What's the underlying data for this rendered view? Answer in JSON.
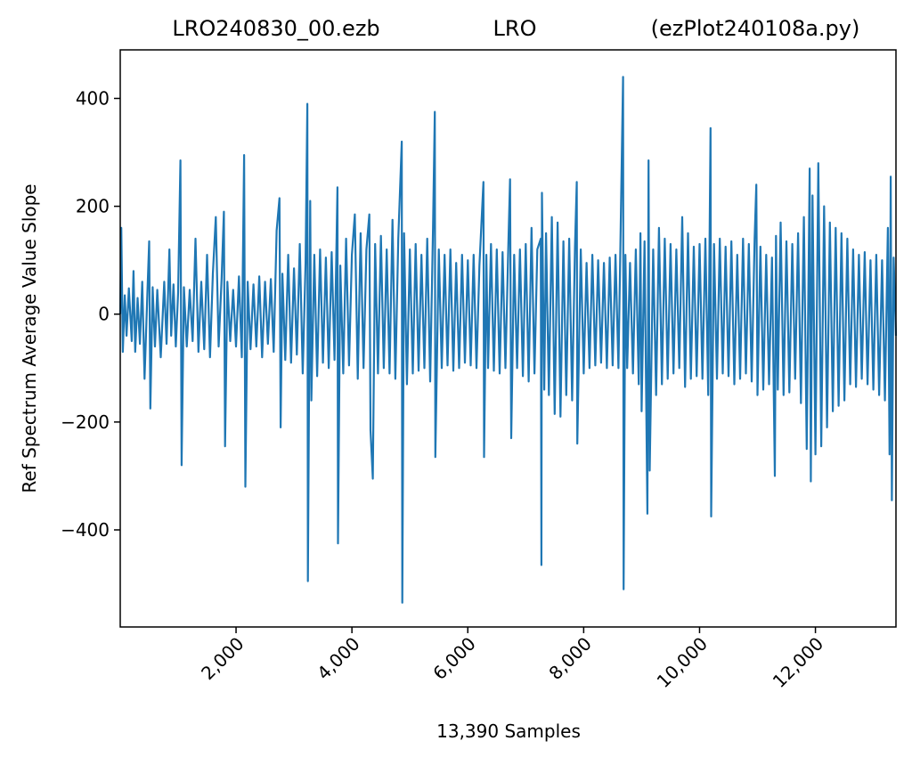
{
  "chart_data": {
    "type": "line",
    "title_left": "LRO240830_00.ezb",
    "title_center": "LRO",
    "title_right": "(ezPlot240108a.py)",
    "xlabel": "13,390 Samples",
    "ylabel": "Ref Spectrum Average Value Slope",
    "xlim": [
      1,
      13390
    ],
    "ylim": [
      -580,
      490
    ],
    "x_ticks": [
      {
        "value": 2000,
        "label": "2,000"
      },
      {
        "value": 4000,
        "label": "4,000"
      },
      {
        "value": 6000,
        "label": "6,000"
      },
      {
        "value": 8000,
        "label": "8,000"
      },
      {
        "value": 10000,
        "label": "10,000"
      },
      {
        "value": 12000,
        "label": "12,000"
      }
    ],
    "y_ticks": [
      {
        "value": 400,
        "label": "400"
      },
      {
        "value": 200,
        "label": "200"
      },
      {
        "value": 0,
        "label": "0"
      },
      {
        "value": -200,
        "label": "−200"
      },
      {
        "value": -400,
        "label": "−400"
      }
    ],
    "grid": false,
    "line_color": "#1f77b4",
    "series": [
      {
        "points": [
          [
            1,
            0
          ],
          [
            20,
            160
          ],
          [
            45,
            -70
          ],
          [
            80,
            35
          ],
          [
            110,
            -40
          ],
          [
            150,
            48
          ],
          [
            200,
            -50
          ],
          [
            230,
            80
          ],
          [
            260,
            -70
          ],
          [
            300,
            30
          ],
          [
            340,
            -55
          ],
          [
            380,
            60
          ],
          [
            420,
            -120
          ],
          [
            470,
            40
          ],
          [
            500,
            135
          ],
          [
            520,
            -175
          ],
          [
            560,
            50
          ],
          [
            600,
            -60
          ],
          [
            640,
            45
          ],
          [
            700,
            -80
          ],
          [
            760,
            60
          ],
          [
            800,
            -55
          ],
          [
            850,
            120
          ],
          [
            880,
            -40
          ],
          [
            920,
            55
          ],
          [
            960,
            -60
          ],
          [
            1000,
            40
          ],
          [
            1040,
            285
          ],
          [
            1060,
            -280
          ],
          [
            1100,
            50
          ],
          [
            1150,
            -60
          ],
          [
            1200,
            45
          ],
          [
            1250,
            -50
          ],
          [
            1300,
            140
          ],
          [
            1350,
            -70
          ],
          [
            1400,
            60
          ],
          [
            1450,
            -65
          ],
          [
            1500,
            110
          ],
          [
            1550,
            -80
          ],
          [
            1600,
            75
          ],
          [
            1650,
            180
          ],
          [
            1700,
            -60
          ],
          [
            1750,
            65
          ],
          [
            1790,
            190
          ],
          [
            1810,
            -245
          ],
          [
            1850,
            60
          ],
          [
            1900,
            -50
          ],
          [
            1950,
            45
          ],
          [
            2000,
            -60
          ],
          [
            2050,
            70
          ],
          [
            2100,
            -80
          ],
          [
            2140,
            295
          ],
          [
            2160,
            -320
          ],
          [
            2200,
            60
          ],
          [
            2250,
            -65
          ],
          [
            2300,
            55
          ],
          [
            2350,
            -60
          ],
          [
            2400,
            70
          ],
          [
            2450,
            -80
          ],
          [
            2500,
            60
          ],
          [
            2550,
            -55
          ],
          [
            2600,
            65
          ],
          [
            2650,
            -70
          ],
          [
            2700,
            155
          ],
          [
            2750,
            215
          ],
          [
            2770,
            -210
          ],
          [
            2800,
            75
          ],
          [
            2850,
            -85
          ],
          [
            2900,
            110
          ],
          [
            2950,
            -90
          ],
          [
            3000,
            85
          ],
          [
            3050,
            -75
          ],
          [
            3100,
            130
          ],
          [
            3150,
            -110
          ],
          [
            3200,
            95
          ],
          [
            3230,
            390
          ],
          [
            3240,
            -495
          ],
          [
            3280,
            210
          ],
          [
            3300,
            -160
          ],
          [
            3350,
            110
          ],
          [
            3400,
            -115
          ],
          [
            3450,
            120
          ],
          [
            3500,
            -90
          ],
          [
            3550,
            105
          ],
          [
            3600,
            -100
          ],
          [
            3650,
            115
          ],
          [
            3700,
            -85
          ],
          [
            3750,
            235
          ],
          [
            3760,
            -425
          ],
          [
            3800,
            90
          ],
          [
            3850,
            -110
          ],
          [
            3900,
            140
          ],
          [
            3950,
            -95
          ],
          [
            4000,
            110
          ],
          [
            4050,
            185
          ],
          [
            4100,
            -120
          ],
          [
            4150,
            150
          ],
          [
            4200,
            -100
          ],
          [
            4250,
            120
          ],
          [
            4300,
            185
          ],
          [
            4320,
            -215
          ],
          [
            4360,
            -305
          ],
          [
            4400,
            130
          ],
          [
            4450,
            -110
          ],
          [
            4500,
            145
          ],
          [
            4550,
            -100
          ],
          [
            4600,
            120
          ],
          [
            4650,
            -110
          ],
          [
            4700,
            175
          ],
          [
            4750,
            -120
          ],
          [
            4800,
            140
          ],
          [
            4860,
            320
          ],
          [
            4870,
            -535
          ],
          [
            4900,
            150
          ],
          [
            4950,
            -130
          ],
          [
            5000,
            120
          ],
          [
            5050,
            -110
          ],
          [
            5100,
            130
          ],
          [
            5150,
            -105
          ],
          [
            5200,
            110
          ],
          [
            5250,
            -100
          ],
          [
            5300,
            140
          ],
          [
            5350,
            -125
          ],
          [
            5400,
            160
          ],
          [
            5430,
            375
          ],
          [
            5440,
            -265
          ],
          [
            5500,
            120
          ],
          [
            5550,
            -100
          ],
          [
            5600,
            110
          ],
          [
            5650,
            -95
          ],
          [
            5700,
            120
          ],
          [
            5750,
            -105
          ],
          [
            5800,
            95
          ],
          [
            5850,
            -100
          ],
          [
            5900,
            110
          ],
          [
            5950,
            -90
          ],
          [
            6000,
            100
          ],
          [
            6050,
            -95
          ],
          [
            6100,
            110
          ],
          [
            6150,
            -100
          ],
          [
            6200,
            90
          ],
          [
            6270,
            245
          ],
          [
            6280,
            -265
          ],
          [
            6320,
            110
          ],
          [
            6350,
            -100
          ],
          [
            6400,
            130
          ],
          [
            6450,
            -105
          ],
          [
            6500,
            120
          ],
          [
            6550,
            -110
          ],
          [
            6600,
            115
          ],
          [
            6650,
            -100
          ],
          [
            6700,
            130
          ],
          [
            6730,
            250
          ],
          [
            6750,
            -230
          ],
          [
            6800,
            110
          ],
          [
            6850,
            -100
          ],
          [
            6900,
            120
          ],
          [
            6950,
            -115
          ],
          [
            7000,
            130
          ],
          [
            7050,
            -125
          ],
          [
            7100,
            160
          ],
          [
            7150,
            -110
          ],
          [
            7200,
            120
          ],
          [
            7260,
            140
          ],
          [
            7270,
            -465
          ],
          [
            7280,
            225
          ],
          [
            7320,
            -140
          ],
          [
            7350,
            150
          ],
          [
            7400,
            -150
          ],
          [
            7450,
            180
          ],
          [
            7500,
            -185
          ],
          [
            7550,
            170
          ],
          [
            7600,
            -190
          ],
          [
            7650,
            135
          ],
          [
            7700,
            -150
          ],
          [
            7750,
            140
          ],
          [
            7800,
            -160
          ],
          [
            7850,
            125
          ],
          [
            7880,
            245
          ],
          [
            7890,
            -240
          ],
          [
            7950,
            120
          ],
          [
            8000,
            -110
          ],
          [
            8050,
            95
          ],
          [
            8100,
            -100
          ],
          [
            8150,
            110
          ],
          [
            8200,
            -95
          ],
          [
            8250,
            100
          ],
          [
            8300,
            -90
          ],
          [
            8350,
            95
          ],
          [
            8400,
            -100
          ],
          [
            8450,
            105
          ],
          [
            8500,
            -95
          ],
          [
            8550,
            110
          ],
          [
            8600,
            -100
          ],
          [
            8680,
            440
          ],
          [
            8690,
            -510
          ],
          [
            8720,
            110
          ],
          [
            8750,
            -100
          ],
          [
            8800,
            95
          ],
          [
            8850,
            -110
          ],
          [
            8900,
            120
          ],
          [
            8950,
            -130
          ],
          [
            8980,
            150
          ],
          [
            9000,
            -180
          ],
          [
            9050,
            135
          ],
          [
            9100,
            -370
          ],
          [
            9120,
            285
          ],
          [
            9140,
            -290
          ],
          [
            9200,
            120
          ],
          [
            9250,
            -150
          ],
          [
            9300,
            160
          ],
          [
            9350,
            -130
          ],
          [
            9400,
            140
          ],
          [
            9450,
            -120
          ],
          [
            9500,
            130
          ],
          [
            9550,
            -110
          ],
          [
            9600,
            120
          ],
          [
            9650,
            -100
          ],
          [
            9700,
            180
          ],
          [
            9750,
            -135
          ],
          [
            9800,
            150
          ],
          [
            9850,
            -120
          ],
          [
            9900,
            125
          ],
          [
            9950,
            -115
          ],
          [
            10000,
            130
          ],
          [
            10050,
            -120
          ],
          [
            10100,
            140
          ],
          [
            10150,
            -150
          ],
          [
            10190,
            345
          ],
          [
            10200,
            -375
          ],
          [
            10250,
            130
          ],
          [
            10300,
            -120
          ],
          [
            10350,
            140
          ],
          [
            10400,
            -110
          ],
          [
            10450,
            125
          ],
          [
            10500,
            -115
          ],
          [
            10550,
            135
          ],
          [
            10600,
            -130
          ],
          [
            10650,
            110
          ],
          [
            10700,
            -120
          ],
          [
            10750,
            140
          ],
          [
            10800,
            -110
          ],
          [
            10850,
            130
          ],
          [
            10900,
            -125
          ],
          [
            10950,
            140
          ],
          [
            10980,
            240
          ],
          [
            11000,
            -150
          ],
          [
            11050,
            125
          ],
          [
            11100,
            -140
          ],
          [
            11150,
            110
          ],
          [
            11200,
            -130
          ],
          [
            11250,
            105
          ],
          [
            11300,
            -300
          ],
          [
            11320,
            145
          ],
          [
            11350,
            -140
          ],
          [
            11400,
            170
          ],
          [
            11450,
            -150
          ],
          [
            11500,
            135
          ],
          [
            11550,
            -145
          ],
          [
            11600,
            130
          ],
          [
            11650,
            -120
          ],
          [
            11700,
            150
          ],
          [
            11750,
            -165
          ],
          [
            11800,
            180
          ],
          [
            11850,
            -250
          ],
          [
            11900,
            270
          ],
          [
            11920,
            -310
          ],
          [
            11950,
            220
          ],
          [
            12000,
            -260
          ],
          [
            12050,
            280
          ],
          [
            12100,
            -245
          ],
          [
            12150,
            200
          ],
          [
            12200,
            -210
          ],
          [
            12250,
            170
          ],
          [
            12300,
            -180
          ],
          [
            12350,
            160
          ],
          [
            12400,
            -170
          ],
          [
            12450,
            150
          ],
          [
            12500,
            -160
          ],
          [
            12550,
            140
          ],
          [
            12600,
            -130
          ],
          [
            12650,
            120
          ],
          [
            12700,
            -135
          ],
          [
            12750,
            110
          ],
          [
            12800,
            -120
          ],
          [
            12850,
            115
          ],
          [
            12900,
            -130
          ],
          [
            12950,
            100
          ],
          [
            13000,
            -140
          ],
          [
            13050,
            110
          ],
          [
            13100,
            -150
          ],
          [
            13150,
            100
          ],
          [
            13200,
            -160
          ],
          [
            13250,
            160
          ],
          [
            13280,
            -260
          ],
          [
            13300,
            255
          ],
          [
            13320,
            -345
          ],
          [
            13350,
            105
          ],
          [
            13390,
            -40
          ]
        ]
      }
    ]
  }
}
